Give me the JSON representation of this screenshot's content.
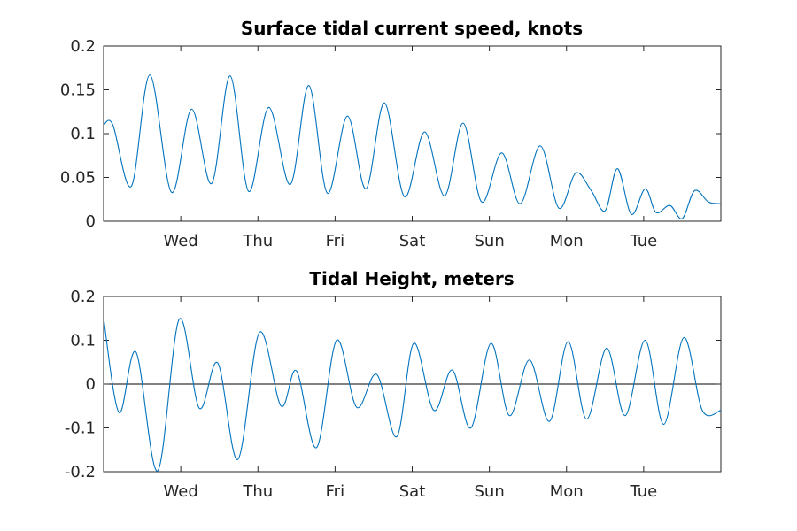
{
  "chart_data": [
    {
      "type": "line",
      "title": "Surface tidal current speed, knots",
      "xlabel": "",
      "ylabel": "",
      "x_tick_labels": [
        "Wed",
        "Thu",
        "Fri",
        "Sat",
        "Sun",
        "Mon",
        "Tue"
      ],
      "x_tick_positions_days": [
        1,
        2,
        3,
        4,
        5,
        6,
        7
      ],
      "xlim_days": [
        0,
        8
      ],
      "ylim": [
        0,
        0.2
      ],
      "yticks": [
        0,
        0.05,
        0.1,
        0.15,
        0.2
      ],
      "ytick_labels": [
        "0",
        "0.05",
        "0.1",
        "0.15",
        "0.2"
      ],
      "grid": false,
      "color": "#0072BD",
      "series": [
        {
          "x_days": [
            0,
            0.12,
            0.36,
            0.6,
            0.88,
            1.14,
            1.4,
            1.64,
            1.88,
            2.14,
            2.42,
            2.66,
            2.9,
            3.16,
            3.4,
            3.64,
            3.9,
            4.16,
            4.42,
            4.66,
            4.9,
            5.16,
            5.4,
            5.66,
            5.9,
            6.12,
            6.32,
            6.5,
            6.66,
            6.84,
            7.02,
            7.16,
            7.34,
            7.5,
            7.66,
            7.84,
            8
          ],
          "y": [
            0.11,
            0.11,
            0.04,
            0.167,
            0.033,
            0.128,
            0.043,
            0.166,
            0.034,
            0.13,
            0.042,
            0.155,
            0.032,
            0.12,
            0.037,
            0.135,
            0.028,
            0.102,
            0.029,
            0.112,
            0.022,
            0.078,
            0.02,
            0.086,
            0.015,
            0.055,
            0.035,
            0.012,
            0.06,
            0.008,
            0.037,
            0.01,
            0.018,
            0.003,
            0.035,
            0.022,
            0.02
          ]
        }
      ]
    },
    {
      "type": "line",
      "title": "Tidal Height, meters",
      "xlabel": "",
      "ylabel": "",
      "x_tick_labels": [
        "Wed",
        "Thu",
        "Fri",
        "Sat",
        "Sun",
        "Mon",
        "Tue"
      ],
      "x_tick_positions_days": [
        1,
        2,
        3,
        4,
        5,
        6,
        7
      ],
      "xlim_days": [
        0,
        8
      ],
      "ylim": [
        -0.2,
        0.2
      ],
      "yticks": [
        -0.2,
        -0.1,
        0,
        0.1,
        0.2
      ],
      "ytick_labels": [
        "-0.2",
        "-0.1",
        "0",
        "0.1",
        "0.2"
      ],
      "zero_line": true,
      "grid": false,
      "color": "#0072BD",
      "series": [
        {
          "x_days": [
            0,
            0.2,
            0.42,
            0.7,
            0.98,
            1.24,
            1.48,
            1.74,
            2.02,
            2.3,
            2.5,
            2.76,
            3.02,
            3.28,
            3.54,
            3.8,
            4.02,
            4.28,
            4.52,
            4.76,
            5.02,
            5.26,
            5.52,
            5.78,
            6.02,
            6.26,
            6.52,
            6.76,
            7.02,
            7.26,
            7.52,
            7.76,
            8
          ],
          "y": [
            0.15,
            -0.065,
            0.073,
            -0.198,
            0.148,
            -0.055,
            0.048,
            -0.172,
            0.118,
            -0.05,
            0.03,
            -0.145,
            0.1,
            -0.053,
            0.022,
            -0.12,
            0.093,
            -0.06,
            0.032,
            -0.1,
            0.093,
            -0.072,
            0.055,
            -0.085,
            0.097,
            -0.08,
            0.082,
            -0.072,
            0.1,
            -0.092,
            0.106,
            -0.06,
            -0.06
          ]
        }
      ]
    }
  ]
}
